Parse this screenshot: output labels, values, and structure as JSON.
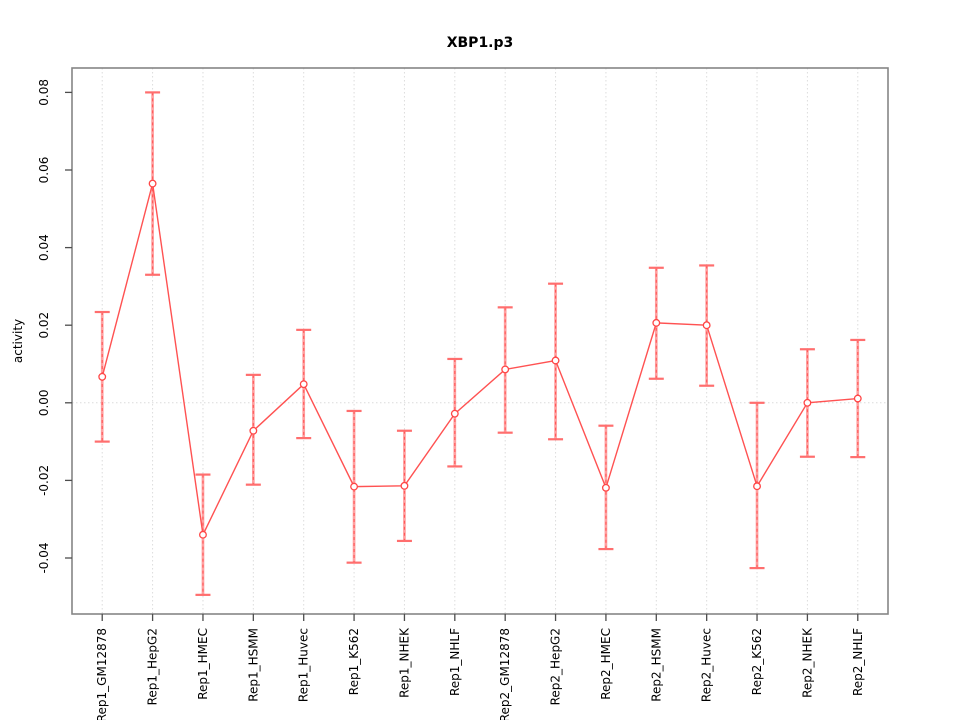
{
  "chart_data": {
    "type": "line",
    "title": "XBP1.p3",
    "xlabel": "",
    "ylabel": "activity",
    "categories": [
      "Rep1_GM12878",
      "Rep1_HepG2",
      "Rep1_HMEC",
      "Rep1_HSMM",
      "Rep1_Huvec",
      "Rep1_K562",
      "Rep1_NHEK",
      "Rep1_NHLF",
      "Rep2_GM12878",
      "Rep2_HepG2",
      "Rep2_HMEC",
      "Rep2_HSMM",
      "Rep2_Huvec",
      "Rep2_K562",
      "Rep2_NHEK",
      "Rep2_NHLF"
    ],
    "series": [
      {
        "name": "activity",
        "values": [
          0.0067,
          0.0565,
          -0.034,
          -0.0072,
          0.0048,
          -0.0216,
          -0.0214,
          -0.0028,
          0.0086,
          0.0109,
          -0.0219,
          0.0206,
          0.02,
          -0.0215,
          0.0,
          0.0011
        ],
        "upper": [
          0.0234,
          0.08,
          -0.0185,
          0.0072,
          0.0188,
          -0.0021,
          -0.0072,
          0.0113,
          0.0246,
          0.0307,
          -0.0059,
          0.0348,
          0.0354,
          0.0,
          0.0138,
          0.0162
        ],
        "lower": [
          -0.01,
          0.033,
          -0.0495,
          -0.0211,
          -0.0091,
          -0.0412,
          -0.0356,
          -0.0164,
          -0.0077,
          -0.0094,
          -0.0377,
          0.0062,
          0.0044,
          -0.0426,
          -0.0139,
          -0.014
        ]
      }
    ],
    "y_ticks": [
      -0.04,
      -0.02,
      0.0,
      0.02,
      0.04,
      0.06,
      0.08
    ],
    "y_tick_labels": [
      "-0.04",
      "-0.02",
      "0.00",
      "0.02",
      "0.04",
      "0.06",
      "0.08"
    ],
    "ylim": [
      -0.0545,
      0.0855
    ],
    "grid": "dotted vertical line at every category; dotted horizontal line at y = 0",
    "legend": "none",
    "marker": "open-circle",
    "colors": {
      "line": "#ff5252",
      "point_stroke": "#ff4545",
      "error_bar_solid": "#ffa0a0",
      "error_bar_dash": "#ff5959",
      "error_bar_cap": "#ff6e6e",
      "grid": "#dcdcdc",
      "box": "#858585",
      "tick": "#4d4d4d",
      "text": "#000000"
    }
  }
}
